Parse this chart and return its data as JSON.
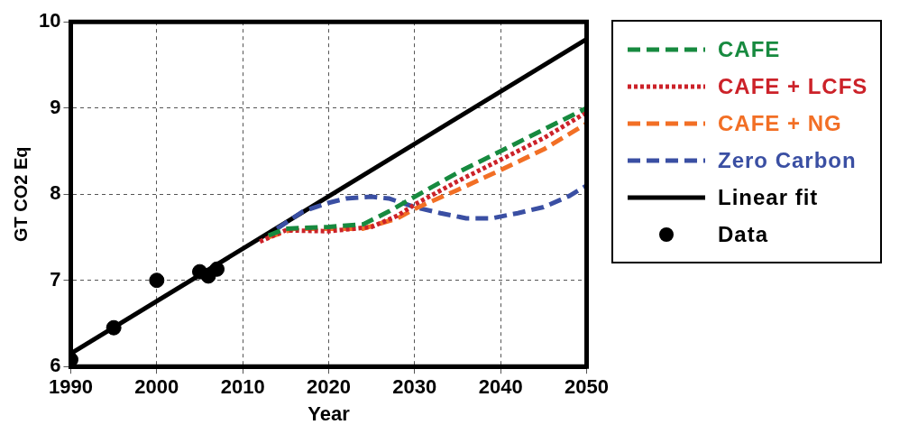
{
  "chart_data": {
    "type": "line",
    "xlabel": "Year",
    "ylabel": "GT CO2 Eq",
    "xlim": [
      1990,
      2050
    ],
    "xticks": [
      1990,
      2000,
      2010,
      2020,
      2030,
      2040,
      2050
    ],
    "ylim": [
      6,
      10
    ],
    "yticks": [
      6,
      7,
      8,
      9,
      10
    ],
    "grid": true,
    "legend": "right",
    "series": [
      {
        "name": "CAFE",
        "color": "#178a3f",
        "line_style": "dashed",
        "marker": "none",
        "x": [
          2013,
          2015,
          2020,
          2024,
          2027,
          2030,
          2035,
          2040,
          2045,
          2050
        ],
        "values": [
          7.52,
          7.6,
          7.62,
          7.65,
          7.8,
          7.97,
          8.25,
          8.5,
          8.75,
          9.0
        ]
      },
      {
        "name": "CAFE + LCFS",
        "color": "#cc2229",
        "line_style": "dotted",
        "marker": "none",
        "x": [
          2012,
          2015,
          2020,
          2025,
          2028,
          2030,
          2035,
          2040,
          2045,
          2050
        ],
        "values": [
          7.45,
          7.58,
          7.57,
          7.62,
          7.75,
          7.88,
          8.15,
          8.4,
          8.65,
          8.95
        ]
      },
      {
        "name": "CAFE + NG",
        "color": "#f26f25",
        "line_style": "dashed",
        "marker": "none",
        "x": [
          2013,
          2016,
          2020,
          2024,
          2028,
          2030,
          2035,
          2040,
          2045,
          2050
        ],
        "values": [
          7.5,
          7.6,
          7.6,
          7.6,
          7.72,
          7.83,
          8.05,
          8.28,
          8.52,
          8.82
        ]
      },
      {
        "name": "Zero Carbon",
        "color": "#3a4fa3",
        "line_style": "dashed",
        "marker": "none",
        "x": [
          2014,
          2017,
          2020,
          2022,
          2025,
          2027,
          2030,
          2033,
          2036,
          2039,
          2042,
          2045,
          2048,
          2050
        ],
        "values": [
          7.6,
          7.8,
          7.9,
          7.95,
          7.97,
          7.95,
          7.85,
          7.78,
          7.72,
          7.72,
          7.78,
          7.85,
          7.98,
          8.1
        ]
      },
      {
        "name": "Linear fit",
        "color": "#000000",
        "line_style": "solid",
        "marker": "none",
        "x": [
          1990,
          2050
        ],
        "values": [
          6.15,
          9.8
        ]
      },
      {
        "type": "scatter",
        "name": "Data",
        "color": "#000000",
        "marker": "circle",
        "x": [
          1990,
          1995,
          2000,
          2005,
          2006,
          2007
        ],
        "values": [
          6.08,
          6.45,
          7.0,
          7.1,
          7.05,
          7.13
        ]
      }
    ]
  }
}
